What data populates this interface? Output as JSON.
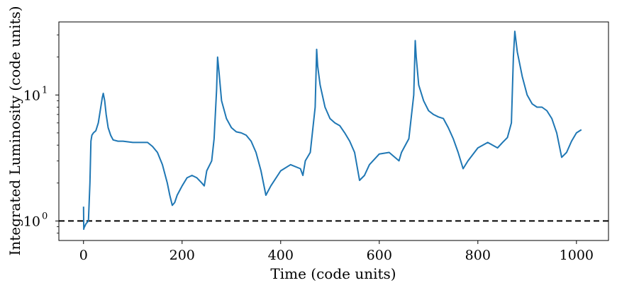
{
  "chart_data": {
    "type": "line",
    "title": "",
    "xlabel": "Time (code units)",
    "ylabel": "Integrated Luminosity (code units)",
    "x_scale": "linear",
    "y_scale": "log",
    "xlim": [
      -50,
      1065
    ],
    "ylim": [
      0.7,
      38
    ],
    "x_ticks": [
      0,
      200,
      400,
      600,
      800,
      1000
    ],
    "x_tick_labels": [
      "0",
      "200",
      "400",
      "600",
      "800",
      "1000"
    ],
    "y_ticks": [
      1,
      10
    ],
    "y_tick_labels": [
      "10",
      "0",
      "10",
      "1"
    ],
    "grid": false,
    "series_color": "#1f77b4",
    "reference_line": {
      "y": 1.0,
      "style": "dashed",
      "color": "#000000"
    },
    "series": [
      {
        "x": [
          0,
          0.5,
          1,
          5,
          10,
          13,
          15,
          17,
          20,
          25,
          30,
          35,
          38,
          40,
          43,
          46,
          50,
          55,
          60,
          70,
          80,
          100,
          120,
          130,
          140,
          150,
          160,
          170,
          175,
          180,
          185,
          190,
          200,
          210,
          220,
          230,
          240,
          245,
          250,
          260,
          265,
          270,
          272,
          275,
          280,
          290,
          300,
          310,
          320,
          330,
          340,
          350,
          360,
          370,
          380,
          400,
          420,
          440,
          445,
          450,
          460,
          470,
          473,
          475,
          480,
          490,
          500,
          510,
          520,
          530,
          540,
          550,
          560,
          570,
          580,
          600,
          620,
          640,
          645,
          650,
          660,
          670,
          673,
          675,
          680,
          690,
          700,
          710,
          720,
          730,
          740,
          750,
          760,
          770,
          780,
          800,
          820,
          840,
          850,
          860,
          868,
          872,
          875,
          880,
          890,
          900,
          910,
          920,
          930,
          940,
          950,
          960,
          970,
          980,
          990,
          1000,
          1010
        ],
        "y": [
          1.3,
          0.86,
          0.88,
          0.95,
          1.0,
          2.0,
          4.3,
          4.8,
          5.0,
          5.2,
          6.0,
          8.0,
          9.5,
          10.3,
          9.0,
          7.0,
          5.5,
          4.8,
          4.4,
          4.3,
          4.3,
          4.2,
          4.2,
          4.2,
          3.9,
          3.5,
          2.8,
          2.0,
          1.6,
          1.33,
          1.4,
          1.6,
          1.9,
          2.2,
          2.3,
          2.2,
          2.0,
          1.9,
          2.5,
          3.0,
          4.5,
          11.0,
          20.0,
          15.0,
          9.0,
          6.5,
          5.5,
          5.1,
          5.0,
          4.8,
          4.3,
          3.5,
          2.5,
          1.6,
          1.9,
          2.5,
          2.8,
          2.6,
          2.3,
          3.0,
          3.5,
          8.0,
          23.0,
          17.0,
          12.0,
          8.0,
          6.5,
          6.0,
          5.7,
          5.0,
          4.3,
          3.5,
          2.1,
          2.3,
          2.8,
          3.4,
          3.5,
          3.0,
          3.5,
          3.8,
          4.5,
          10.0,
          27.0,
          20.0,
          12.0,
          9.0,
          7.5,
          7.0,
          6.7,
          6.5,
          5.5,
          4.5,
          3.5,
          2.6,
          3.0,
          3.8,
          4.2,
          3.8,
          4.2,
          4.6,
          6.0,
          20.0,
          32.0,
          22.0,
          14.0,
          10.0,
          8.5,
          8.0,
          8.0,
          7.5,
          6.5,
          5.0,
          3.2,
          3.5,
          4.3,
          5.0,
          5.3
        ]
      }
    ]
  }
}
